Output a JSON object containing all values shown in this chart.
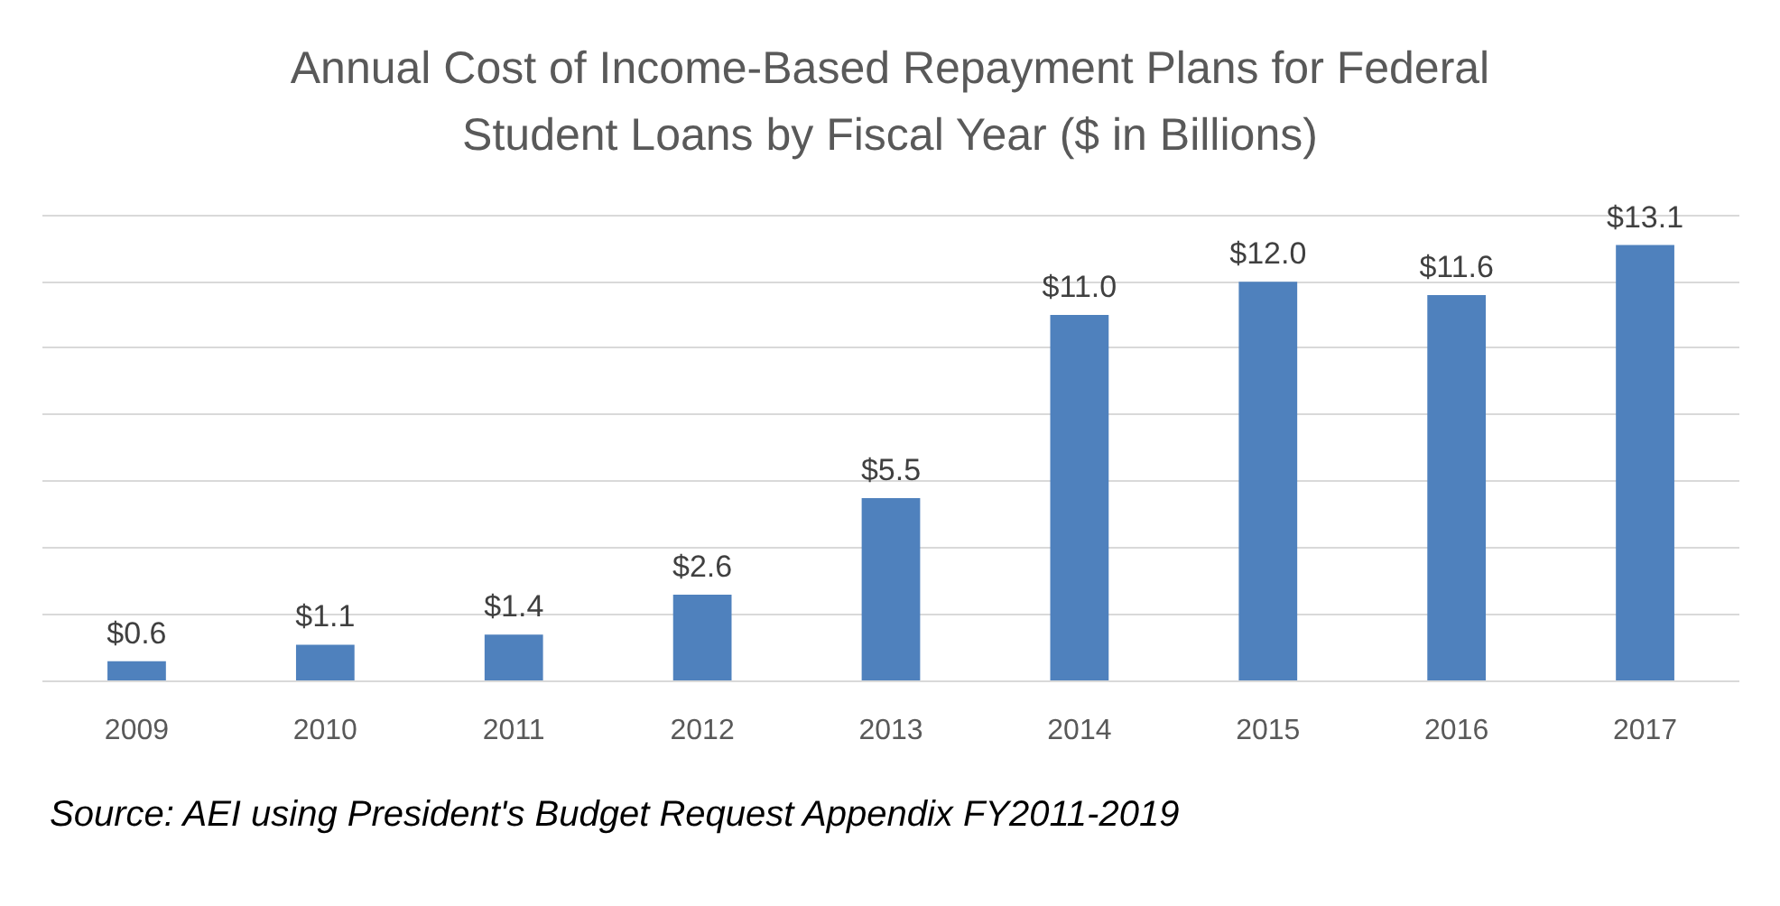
{
  "chart_data": {
    "type": "bar",
    "title": "Annual Cost of Income-Based Repayment Plans for Federal Student Loans by Fiscal Year ($ in Billions)",
    "categories": [
      "2009",
      "2010",
      "2011",
      "2012",
      "2013",
      "2014",
      "2015",
      "2016",
      "2017"
    ],
    "values": [
      0.6,
      1.1,
      1.4,
      2.6,
      5.5,
      11.0,
      12.0,
      11.6,
      13.1
    ],
    "value_labels": [
      "$0.6",
      "$1.1",
      "$1.4",
      "$2.6",
      "$5.5",
      "$11.0",
      "$12.0",
      "$11.6",
      "$13.1"
    ],
    "color": "#4f81bd",
    "yticks": [
      {
        "value": 0,
        "label": null
      },
      {
        "value": 2,
        "label": null
      },
      {
        "value": 4,
        "label": null
      },
      {
        "value": 6,
        "label": null
      },
      {
        "value": 8,
        "label": null
      },
      {
        "value": 10,
        "label": null
      },
      {
        "value": 12,
        "label": null
      },
      {
        "value": 14,
        "label": null
      }
    ],
    "grid": "y",
    "tick_labels": "x",
    "annotations": [
      "Source: AEI using President's Budget Request Appendix FY2011-2019"
    ]
  }
}
